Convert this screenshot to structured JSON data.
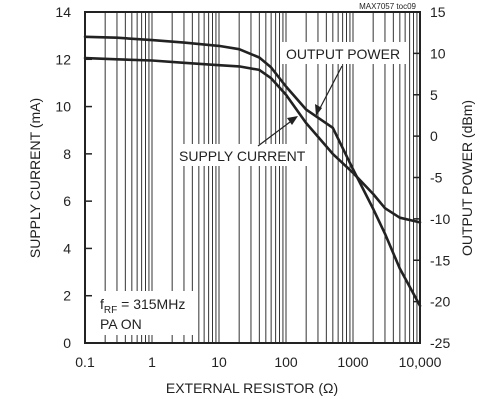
{
  "chart_data": {
    "type": "line",
    "title": "",
    "chart_id": "MAX7057 toc09",
    "xlabel": "EXTERNAL RESISTOR (Ω)",
    "ylabel_left": "SUPPLY CURRENT (mA)",
    "ylabel_right": "OUTPUT POWER (dBm)",
    "x_scale": "log",
    "xlim": [
      0.1,
      10000
    ],
    "ylim_left": [
      0,
      14
    ],
    "ylim_right": [
      -25,
      15
    ],
    "x_ticks": [
      {
        "value": 0.1,
        "label": "0.1"
      },
      {
        "value": 1,
        "label": "1"
      },
      {
        "value": 10,
        "label": "10"
      },
      {
        "value": 100,
        "label": "100"
      },
      {
        "value": 1000,
        "label": "1000"
      },
      {
        "value": 10000,
        "label": "10,000"
      }
    ],
    "y_ticks_left": [
      {
        "value": 0,
        "label": "0"
      },
      {
        "value": 2,
        "label": "2"
      },
      {
        "value": 4,
        "label": "4"
      },
      {
        "value": 6,
        "label": "6"
      },
      {
        "value": 8,
        "label": "8"
      },
      {
        "value": 10,
        "label": "10"
      },
      {
        "value": 12,
        "label": "12"
      },
      {
        "value": 14,
        "label": "14"
      }
    ],
    "y_ticks_right": [
      {
        "value": -25,
        "label": "-25"
      },
      {
        "value": -20,
        "label": "-20"
      },
      {
        "value": -15,
        "label": "-15"
      },
      {
        "value": -10,
        "label": "-10"
      },
      {
        "value": -5,
        "label": "-5"
      },
      {
        "value": 0,
        "label": "0"
      },
      {
        "value": 5,
        "label": "5"
      },
      {
        "value": 10,
        "label": "10"
      },
      {
        "value": 15,
        "label": "15"
      }
    ],
    "grid": "vertical",
    "series": [
      {
        "name": "OUTPUT POWER",
        "axis": "right",
        "x": [
          0.1,
          0.3,
          1,
          3,
          10,
          20,
          40,
          60,
          100,
          200,
          500,
          1000,
          2000,
          3000,
          5000,
          10000
        ],
        "y": [
          12.0,
          11.9,
          11.6,
          11.3,
          10.9,
          10.5,
          9.5,
          8.3,
          6.0,
          3.2,
          1.0,
          -4.0,
          -8.8,
          -11.8,
          -16.0,
          -20.5
        ]
      },
      {
        "name": "SUPPLY CURRENT",
        "axis": "left",
        "x": [
          0.1,
          0.3,
          1,
          3,
          10,
          20,
          40,
          60,
          100,
          200,
          500,
          1000,
          2000,
          3000,
          5000,
          10000
        ],
        "y": [
          12.05,
          12.0,
          11.95,
          11.85,
          11.75,
          11.7,
          11.55,
          11.2,
          10.5,
          9.3,
          8.0,
          7.2,
          6.3,
          5.7,
          5.3,
          5.1
        ]
      }
    ],
    "annotations": {
      "output_power_label": "OUTPUT POWER",
      "supply_current_label": "SUPPLY CURRENT",
      "cond_f": "f",
      "cond_sub": "RF",
      "cond_rest": " = 315MHz",
      "cond_pa": "PA ON"
    }
  }
}
